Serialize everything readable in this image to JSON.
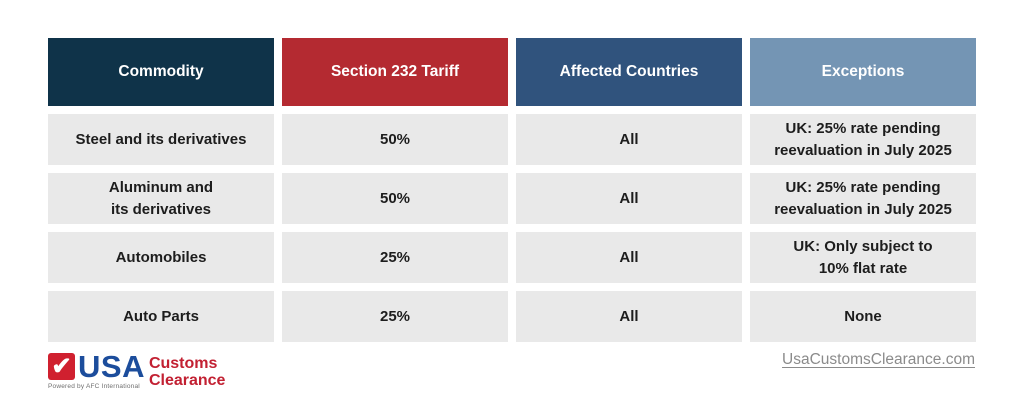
{
  "table": {
    "columns": [
      {
        "label": "Commodity",
        "bg": "#0f3349"
      },
      {
        "label": "Section 232 Tariff",
        "bg": "#b42a31"
      },
      {
        "label": "Affected Countries",
        "bg": "#30537d"
      },
      {
        "label": "Exceptions",
        "bg": "#7495b4"
      }
    ],
    "row_bg": "#e9e9e9",
    "rows": [
      {
        "commodity": "Steel and its derivatives",
        "tariff": "50%",
        "affected_countries": "All",
        "exceptions": "UK: 25% rate pending\nreevaluation in July 2025"
      },
      {
        "commodity": "Aluminum and\nits derivatives",
        "tariff": "50%",
        "affected_countries": "All",
        "exceptions": "UK: 25% rate pending\nreevaluation in July 2025"
      },
      {
        "commodity": "Automobiles",
        "tariff": "25%",
        "affected_countries": "All",
        "exceptions": "UK: Only subject to\n10% flat rate"
      },
      {
        "commodity": "Auto Parts",
        "tariff": "25%",
        "affected_countries": "All",
        "exceptions": "None"
      }
    ]
  },
  "footer": {
    "logo": {
      "check_icon": "checkmark-icon",
      "check_glyph": "✔",
      "usa": "USA",
      "customs": "Customs",
      "clearance": "Clearance",
      "powered_by": "Powered by AFC International",
      "check_color": "#d0202f",
      "usa_color": "#1c4d9c",
      "red_color": "#c22032"
    },
    "website": "UsaCustomsClearance.com"
  },
  "chart_data": {
    "type": "table",
    "columns": [
      "Commodity",
      "Section 232 Tariff",
      "Affected Countries",
      "Exceptions"
    ],
    "rows": [
      [
        "Steel and its derivatives",
        "50%",
        "All",
        "UK: 25% rate pending reevaluation in July 2025"
      ],
      [
        "Aluminum and its derivatives",
        "50%",
        "All",
        "UK: 25% rate pending reevaluation in July 2025"
      ],
      [
        "Automobiles",
        "25%",
        "All",
        "UK: Only subject to 10% flat rate"
      ],
      [
        "Auto Parts",
        "25%",
        "All",
        "None"
      ]
    ],
    "header_colors": [
      "#0f3349",
      "#b42a31",
      "#30537d",
      "#7495b4"
    ],
    "cell_color": "#e9e9e9",
    "legend_position": "none",
    "grid": false
  }
}
